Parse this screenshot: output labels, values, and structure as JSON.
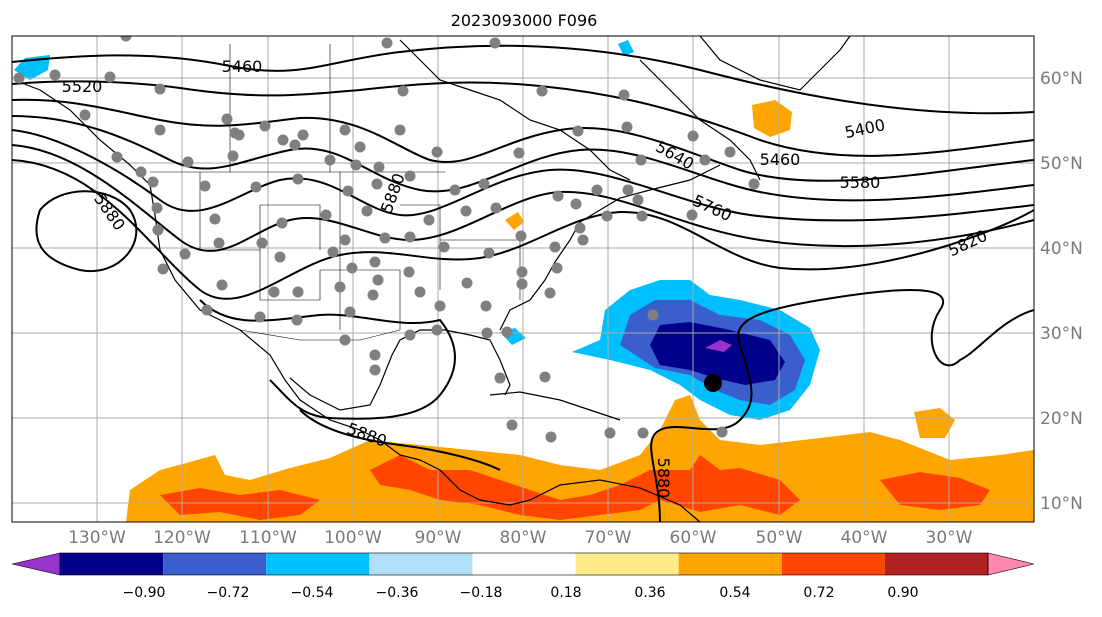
{
  "title": "2023093000 F096",
  "lat_labels": [
    "60°N",
    "50°N",
    "40°N",
    "30°N",
    "20°N",
    "10°N"
  ],
  "lon_labels": [
    "130°W",
    "120°W",
    "110°W",
    "100°W",
    "90°W",
    "80°W",
    "70°W",
    "60°W",
    "50°W",
    "40°W",
    "30°W"
  ],
  "contour_labels": [
    "5460",
    "5520",
    "5880",
    "5400",
    "5460",
    "5580",
    "5640",
    "5760",
    "5820",
    "5880",
    "5880",
    "5880"
  ],
  "colorbar": {
    "ticks": [
      "−0.90",
      "−0.72",
      "−0.54",
      "−0.36",
      "−0.18",
      "0.18",
      "0.36",
      "0.54",
      "0.72",
      "0.90"
    ],
    "colors": [
      "#9932cc",
      "#00008b",
      "#3a5fcd",
      "#00bfff",
      "#b0e0fa",
      "#ffffff",
      "#ffeb8a",
      "#ffa500",
      "#ff4500",
      "#b22222",
      "#ff88b0"
    ]
  },
  "colors": {
    "grid": "#aaaaaa",
    "contour": "#000000",
    "station": "#808080"
  },
  "icons": {
    "storm": "storm-center-icon",
    "station": "station-dot-icon"
  }
}
